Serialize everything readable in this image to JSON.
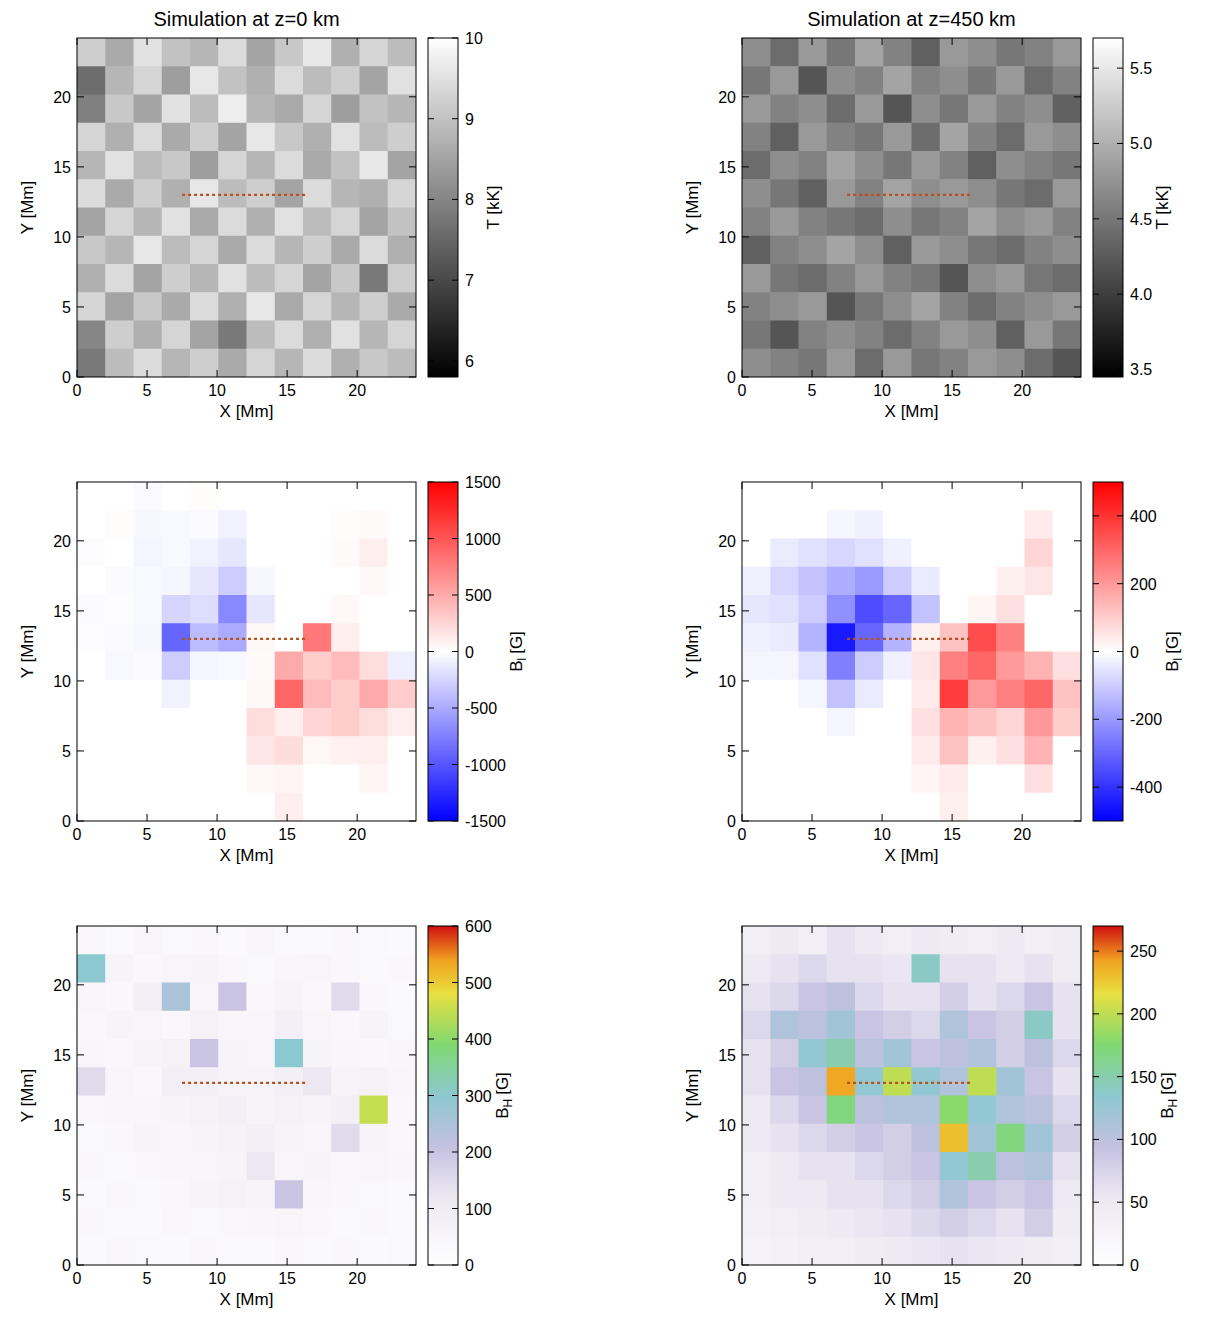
{
  "chart_data": [
    {
      "type": "heatmap",
      "title": "Simulation at z=0 km",
      "x_label": "X [Mm]",
      "y_label": "Y [Mm]",
      "xlim": [
        0,
        24.2
      ],
      "ylim": [
        0,
        24.2
      ],
      "xticks": [
        0,
        5,
        10,
        15,
        20
      ],
      "yticks": [
        0,
        5,
        10,
        15,
        20
      ],
      "color": "gray",
      "slit_x": [
        7.5,
        16.5
      ],
      "slit_y": 13,
      "colorbar": {
        "range": [
          5.8,
          10
        ],
        "ticks": [
          6,
          7,
          8,
          9,
          10
        ],
        "label": "T [kK]"
      },
      "cells": [
        [
          9.2,
          8.6,
          9.5,
          9.0,
          8.8,
          9.4,
          8.5,
          9.1,
          9.6,
          8.7,
          9.3,
          8.9
        ],
        [
          7.6,
          8.8,
          9.3,
          8.4,
          9.6,
          9.0,
          8.7,
          9.4,
          8.9,
          9.2,
          8.5,
          9.5
        ],
        [
          7.9,
          9.1,
          8.5,
          9.5,
          8.9,
          9.7,
          8.8,
          8.6,
          9.3,
          8.4,
          9.0,
          8.8
        ],
        [
          9.3,
          8.7,
          9.4,
          8.6,
          9.2,
          8.5,
          9.6,
          9.1,
          8.7,
          9.5,
          8.9,
          9.2
        ],
        [
          8.8,
          9.5,
          8.9,
          9.1,
          8.4,
          9.3,
          8.8,
          9.4,
          8.6,
          9.0,
          9.6,
          8.5
        ],
        [
          9.4,
          8.6,
          9.2,
          8.7,
          9.6,
          8.9,
          9.2,
          8.5,
          9.4,
          8.8,
          8.7,
          9.3
        ],
        [
          8.5,
          9.3,
          8.8,
          9.5,
          8.6,
          9.4,
          8.7,
          9.5,
          8.9,
          9.3,
          8.5,
          9.0
        ],
        [
          9.1,
          8.8,
          9.6,
          8.9,
          9.3,
          8.6,
          9.4,
          8.8,
          9.2,
          8.6,
          9.4,
          8.7
        ],
        [
          8.7,
          9.4,
          8.5,
          9.2,
          8.8,
          9.5,
          8.9,
          9.3,
          8.5,
          9.1,
          7.8,
          9.2
        ],
        [
          9.3,
          8.5,
          9.1,
          8.6,
          9.4,
          8.7,
          9.6,
          8.6,
          9.3,
          8.8,
          9.2,
          8.6
        ],
        [
          8.0,
          9.2,
          8.7,
          9.3,
          8.5,
          7.8,
          8.9,
          9.4,
          8.7,
          9.5,
          8.8,
          9.3
        ],
        [
          7.8,
          8.9,
          9.4,
          8.8,
          9.2,
          8.6,
          9.3,
          8.8,
          9.4,
          8.7,
          9.1,
          8.9
        ]
      ]
    },
    {
      "type": "heatmap",
      "title": "Simulation at z=450 km",
      "x_label": "X [Mm]",
      "y_label": "Y [Mm]",
      "xlim": [
        0,
        24.2
      ],
      "ylim": [
        0,
        24.2
      ],
      "xticks": [
        0,
        5,
        10,
        15,
        20
      ],
      "yticks": [
        0,
        5,
        10,
        15,
        20
      ],
      "color": "gray",
      "slit_x": [
        7.5,
        16.5
      ],
      "slit_y": 13,
      "colorbar": {
        "range": [
          3.45,
          5.7
        ],
        "ticks": [
          3.5,
          {
            "value": 4,
            "label": "4.0"
          },
          4.5,
          {
            "value": 5,
            "label": "5.0"
          },
          5.5
        ],
        "label": "T [kK]"
      },
      "cells": [
        [
          4.7,
          4.4,
          4.8,
          4.5,
          4.9,
          4.6,
          4.3,
          4.8,
          4.7,
          4.5,
          4.6,
          4.8
        ],
        [
          4.5,
          4.8,
          4.2,
          4.7,
          4.6,
          4.9,
          4.6,
          4.7,
          4.5,
          4.8,
          4.4,
          4.6
        ],
        [
          4.8,
          4.6,
          4.7,
          4.4,
          4.8,
          4.2,
          4.7,
          4.5,
          4.8,
          4.6,
          4.7,
          4.3
        ],
        [
          4.6,
          4.3,
          4.8,
          4.6,
          4.5,
          4.8,
          4.4,
          4.9,
          4.6,
          4.4,
          4.8,
          4.7
        ],
        [
          4.4,
          4.7,
          4.6,
          4.9,
          4.7,
          4.5,
          4.8,
          4.6,
          4.3,
          4.7,
          4.6,
          4.5
        ],
        [
          4.7,
          4.5,
          4.3,
          4.8,
          4.6,
          4.9,
          4.7,
          4.8,
          4.7,
          4.5,
          4.4,
          4.8
        ],
        [
          4.6,
          4.8,
          4.6,
          4.5,
          4.4,
          4.7,
          4.5,
          4.6,
          4.9,
          4.7,
          4.8,
          4.6
        ],
        [
          4.3,
          4.6,
          4.7,
          4.9,
          4.7,
          4.3,
          4.8,
          4.7,
          4.5,
          4.4,
          4.6,
          4.7
        ],
        [
          4.8,
          4.5,
          4.4,
          4.6,
          4.8,
          4.6,
          4.5,
          4.2,
          4.7,
          4.8,
          4.5,
          4.4
        ],
        [
          4.6,
          4.7,
          4.8,
          4.2,
          4.5,
          4.7,
          4.9,
          4.6,
          4.4,
          4.6,
          4.7,
          4.8
        ],
        [
          4.5,
          4.2,
          4.6,
          4.7,
          4.6,
          4.4,
          4.6,
          4.8,
          4.7,
          4.3,
          4.8,
          4.5
        ],
        [
          4.7,
          4.6,
          4.5,
          4.8,
          4.4,
          4.8,
          4.5,
          4.6,
          4.8,
          4.7,
          4.4,
          4.2
        ]
      ]
    },
    {
      "type": "heatmap",
      "x_label": "X [Mm]",
      "y_label": "Y [Mm]",
      "xlim": [
        0,
        24.2
      ],
      "ylim": [
        0,
        24.2
      ],
      "xticks": [
        0,
        5,
        10,
        15,
        20
      ],
      "yticks": [
        0,
        5,
        10,
        15,
        20
      ],
      "color": "bwr",
      "slit_x": [
        7.5,
        16.5
      ],
      "slit_y": 13,
      "colorbar": {
        "range": [
          -1500,
          1500
        ],
        "ticks": [
          -1500,
          -1000,
          -500,
          0,
          500,
          1000,
          1500
        ],
        "label": "B",
        "label_sub": "l",
        "label_unit": "[G]"
      },
      "cells": [
        [
          0,
          0,
          -30,
          0,
          20,
          0,
          0,
          0,
          0,
          0,
          0,
          0
        ],
        [
          0,
          20,
          -50,
          -40,
          -30,
          -80,
          0,
          0,
          0,
          20,
          30,
          0
        ],
        [
          -20,
          0,
          -60,
          -40,
          -80,
          -150,
          0,
          0,
          0,
          30,
          100,
          0
        ],
        [
          0,
          -30,
          -40,
          -60,
          -150,
          -300,
          -50,
          0,
          0,
          0,
          40,
          0
        ],
        [
          -30,
          -20,
          -40,
          -250,
          -200,
          -700,
          -150,
          0,
          0,
          40,
          0,
          0
        ],
        [
          -20,
          -30,
          -50,
          -900,
          -400,
          -500,
          40,
          0,
          800,
          100,
          0,
          0
        ],
        [
          0,
          -40,
          -30,
          -300,
          -60,
          -40,
          30,
          500,
          300,
          400,
          200,
          -100
        ],
        [
          0,
          0,
          0,
          -80,
          0,
          0,
          40,
          900,
          400,
          300,
          500,
          300
        ],
        [
          0,
          0,
          0,
          0,
          0,
          0,
          200,
          100,
          250,
          300,
          200,
          100
        ],
        [
          0,
          0,
          0,
          0,
          0,
          0,
          150,
          200,
          50,
          80,
          100,
          0
        ],
        [
          0,
          0,
          0,
          0,
          0,
          0,
          50,
          60,
          0,
          0,
          60,
          0
        ],
        [
          0,
          0,
          0,
          0,
          0,
          0,
          0,
          100,
          0,
          0,
          0,
          0
        ]
      ]
    },
    {
      "type": "heatmap",
      "x_label": "X [Mm]",
      "y_label": "Y [Mm]",
      "xlim": [
        0,
        24.2
      ],
      "ylim": [
        0,
        24.2
      ],
      "xticks": [
        0,
        5,
        10,
        15,
        20
      ],
      "yticks": [
        0,
        5,
        10,
        15,
        20
      ],
      "color": "bwr",
      "slit_x": [
        7.5,
        16.5
      ],
      "slit_y": 13,
      "colorbar": {
        "range": [
          -500,
          500
        ],
        "ticks": [
          -400,
          -200,
          0,
          200,
          400
        ],
        "label": "B",
        "label_sub": "l",
        "label_unit": "[G]"
      },
      "cells": [
        [
          0,
          0,
          0,
          0,
          0,
          0,
          0,
          0,
          0,
          0,
          0,
          0
        ],
        [
          0,
          0,
          0,
          -20,
          -30,
          0,
          0,
          0,
          0,
          0,
          40,
          0
        ],
        [
          0,
          -40,
          -60,
          -80,
          -60,
          -30,
          0,
          0,
          0,
          0,
          80,
          0
        ],
        [
          -30,
          -80,
          -120,
          -160,
          -200,
          -100,
          -40,
          0,
          0,
          30,
          50,
          0
        ],
        [
          -50,
          -60,
          -100,
          -220,
          -350,
          -300,
          -120,
          0,
          20,
          60,
          0,
          0
        ],
        [
          -30,
          -40,
          -150,
          -450,
          -300,
          -150,
          30,
          120,
          350,
          250,
          0,
          0
        ],
        [
          -20,
          -20,
          -60,
          -250,
          -100,
          -30,
          50,
          250,
          300,
          200,
          150,
          60
        ],
        [
          0,
          0,
          -20,
          -120,
          -40,
          0,
          40,
          380,
          200,
          250,
          300,
          120
        ],
        [
          0,
          0,
          0,
          -20,
          0,
          0,
          60,
          150,
          120,
          80,
          200,
          100
        ],
        [
          0,
          0,
          0,
          0,
          0,
          0,
          40,
          120,
          30,
          60,
          150,
          0
        ],
        [
          0,
          0,
          0,
          0,
          0,
          0,
          20,
          40,
          0,
          0,
          60,
          0
        ],
        [
          0,
          0,
          0,
          0,
          0,
          0,
          0,
          30,
          0,
          0,
          0,
          0
        ]
      ]
    },
    {
      "type": "heatmap",
      "x_label": "X [Mm]",
      "y_label": "Y [Mm]",
      "xlim": [
        0,
        24.2
      ],
      "ylim": [
        0,
        24.2
      ],
      "xticks": [
        0,
        5,
        10,
        15,
        20
      ],
      "yticks": [
        0,
        5,
        10,
        15,
        20
      ],
      "color": "rainbow",
      "slit_x": [
        7.5,
        16.5
      ],
      "slit_y": 13,
      "colorbar": {
        "range": [
          0,
          600
        ],
        "ticks": [
          0,
          100,
          200,
          300,
          400,
          500,
          600
        ],
        "label": "B",
        "label_sub": "H",
        "label_unit": "[G]"
      },
      "cells": [
        [
          40,
          30,
          50,
          35,
          40,
          30,
          45,
          35,
          30,
          40,
          35,
          30
        ],
        [
          300,
          60,
          40,
          50,
          60,
          40,
          35,
          45,
          50,
          40,
          35,
          40
        ],
        [
          50,
          40,
          80,
          250,
          50,
          200,
          40,
          60,
          40,
          150,
          40,
          30
        ],
        [
          40,
          60,
          50,
          40,
          70,
          50,
          45,
          80,
          50,
          40,
          60,
          35
        ],
        [
          45,
          40,
          60,
          70,
          200,
          60,
          50,
          300,
          60,
          50,
          40,
          45
        ],
        [
          150,
          50,
          40,
          90,
          80,
          60,
          60,
          80,
          120,
          60,
          70,
          50
        ],
        [
          40,
          45,
          50,
          60,
          70,
          80,
          60,
          70,
          60,
          80,
          450,
          40
        ],
        [
          35,
          40,
          60,
          50,
          60,
          70,
          80,
          60,
          50,
          150,
          60,
          40
        ],
        [
          40,
          35,
          40,
          45,
          50,
          60,
          120,
          50,
          60,
          40,
          50,
          45
        ],
        [
          30,
          40,
          35,
          40,
          60,
          70,
          60,
          200,
          45,
          40,
          35,
          30
        ],
        [
          40,
          35,
          30,
          40,
          35,
          40,
          45,
          50,
          40,
          35,
          40,
          35
        ],
        [
          30,
          40,
          35,
          30,
          40,
          35,
          30,
          40,
          35,
          40,
          30,
          35
        ]
      ]
    },
    {
      "type": "heatmap",
      "x_label": "X [Mm]",
      "y_label": "Y [Mm]",
      "xlim": [
        0,
        24.2
      ],
      "ylim": [
        0,
        24.2
      ],
      "xticks": [
        0,
        5,
        10,
        15,
        20
      ],
      "yticks": [
        0,
        5,
        10,
        15,
        20
      ],
      "color": "rainbow",
      "slit_x": [
        7.5,
        16.5
      ],
      "slit_y": 13,
      "colorbar": {
        "range": [
          0,
          270
        ],
        "ticks": [
          0,
          50,
          100,
          150,
          200,
          250
        ],
        "label": "B",
        "label_sub": "H",
        "label_unit": "[G]"
      },
      "cells": [
        [
          40,
          50,
          40,
          60,
          50,
          40,
          50,
          45,
          40,
          50,
          40,
          45
        ],
        [
          50,
          60,
          70,
          60,
          60,
          55,
          140,
          60,
          60,
          50,
          60,
          45
        ],
        [
          60,
          70,
          90,
          100,
          70,
          60,
          60,
          80,
          60,
          70,
          90,
          60
        ],
        [
          70,
          110,
          100,
          120,
          90,
          80,
          70,
          110,
          90,
          80,
          140,
          60
        ],
        [
          60,
          80,
          130,
          150,
          100,
          120,
          90,
          100,
          110,
          80,
          100,
          70
        ],
        [
          60,
          90,
          100,
          240,
          130,
          200,
          130,
          110,
          200,
          120,
          90,
          60
        ],
        [
          50,
          70,
          90,
          170,
          100,
          110,
          110,
          180,
          130,
          110,
          100,
          70
        ],
        [
          50,
          60,
          70,
          80,
          90,
          80,
          100,
          230,
          120,
          170,
          120,
          80
        ],
        [
          40,
          50,
          60,
          60,
          70,
          80,
          90,
          130,
          150,
          100,
          110,
          60
        ],
        [
          40,
          50,
          50,
          60,
          60,
          70,
          80,
          110,
          90,
          80,
          90,
          50
        ],
        [
          35,
          40,
          45,
          50,
          55,
          60,
          70,
          80,
          70,
          60,
          80,
          45
        ],
        [
          30,
          35,
          40,
          40,
          45,
          50,
          55,
          60,
          55,
          50,
          45,
          40
        ]
      ]
    }
  ]
}
